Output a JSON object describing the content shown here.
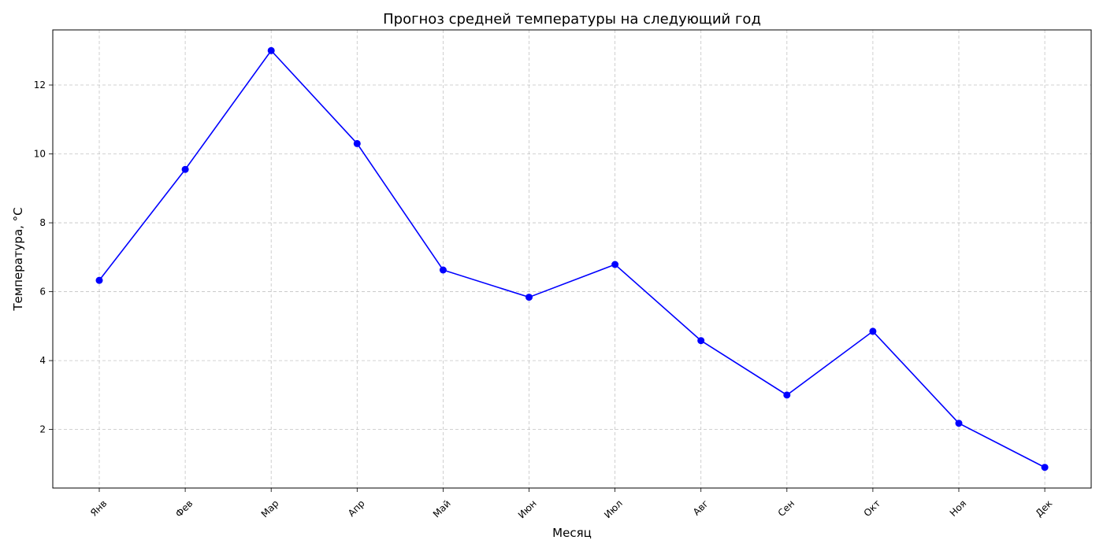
{
  "chart_data": {
    "type": "line",
    "title": "Прогноз средней температуры на следующий год",
    "xlabel": "Месяц",
    "ylabel": "Температура, °C",
    "categories": [
      "Янв",
      "Фев",
      "Мар",
      "Апр",
      "Май",
      "Июн",
      "Июл",
      "Авг",
      "Сен",
      "Окт",
      "Ноя",
      "Дек"
    ],
    "values": [
      6.33,
      9.55,
      13.0,
      10.3,
      6.63,
      5.84,
      6.79,
      4.58,
      3.0,
      4.85,
      2.18,
      0.9
    ],
    "ylim": [
      0.3,
      13.6
    ],
    "yticks": [
      "2",
      "4",
      "6",
      "8",
      "10",
      "12"
    ],
    "grid": true,
    "series_color": "#0000ff",
    "marker": "circle"
  }
}
